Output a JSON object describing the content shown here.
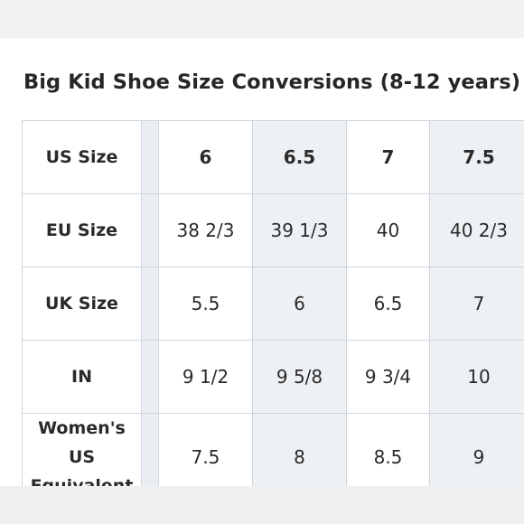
{
  "title": "Big Kid Shoe Size Conversions (8-12 years)",
  "rows": [
    {
      "label": "US Size",
      "values": [
        "6",
        "6.5",
        "7",
        "7.5"
      ]
    },
    {
      "label": "EU Size",
      "values": [
        "38 2/3",
        "39 1/3",
        "40",
        "40 2/3"
      ]
    },
    {
      "label": "UK Size",
      "values": [
        "5.5",
        "6",
        "6.5",
        "7"
      ]
    },
    {
      "label": "IN",
      "values": [
        "9 1/2",
        "9 5/8",
        "9 3/4",
        "10"
      ]
    },
    {
      "label_line1": "Women's US",
      "label_line2": "Equivalent",
      "values": [
        "7.5",
        "8",
        "8.5",
        "9"
      ]
    }
  ],
  "colors": {
    "shaded_column": "#eef1f4",
    "border": "#cfd5dc"
  }
}
